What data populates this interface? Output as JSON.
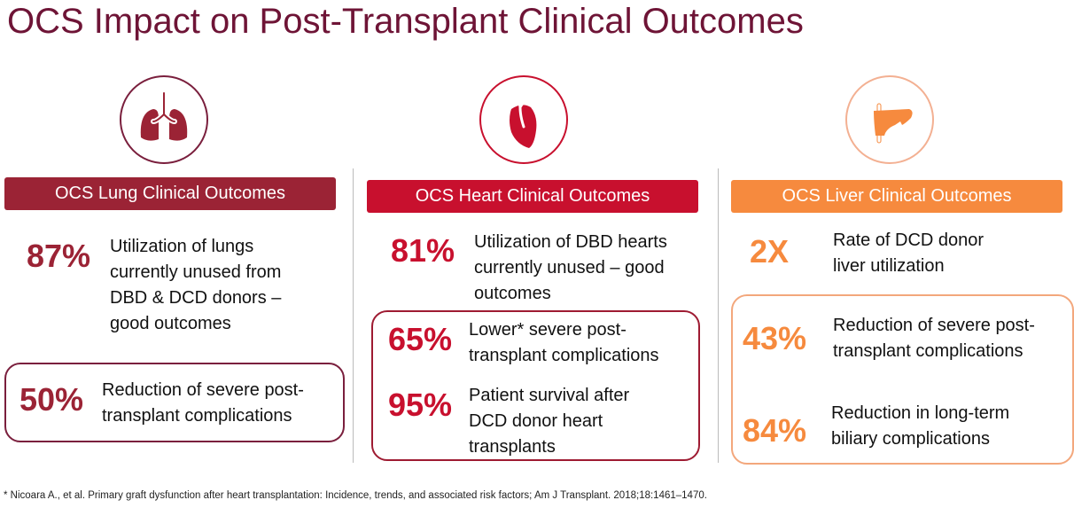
{
  "title": "OCS Impact on Post-Transplant Clinical Outcomes",
  "colors": {
    "lung": "#9b2335",
    "heart": "#c8102e",
    "liver": "#f68a3e",
    "title": "#6e1436"
  },
  "lung": {
    "icon": "lungs-icon",
    "header": "OCS Lung Clinical Outcomes",
    "stat1": {
      "value": "87%",
      "text": "Utilization of lungs currently unused from DBD & DCD donors – good outcomes"
    },
    "stat2": {
      "value": "50%",
      "text": "Reduction of severe post-transplant complications"
    }
  },
  "heart": {
    "icon": "heart-icon",
    "header": "OCS Heart Clinical Outcomes",
    "stat1": {
      "value": "81%",
      "text": "Utilization of DBD hearts currently unused – good outcomes"
    },
    "stat2": {
      "value": "65%",
      "text": "Lower* severe post-transplant complications"
    },
    "stat3": {
      "value": "95%",
      "text": "Patient survival after DCD donor heart transplants"
    }
  },
  "liver": {
    "icon": "liver-icon",
    "header": "OCS Liver Clinical Outcomes",
    "stat1": {
      "value": "2X",
      "text": "Rate of DCD donor liver utilization"
    },
    "stat2": {
      "value": "43%",
      "text": "Reduction of severe post-transplant complications"
    },
    "stat3": {
      "value": "84%",
      "text": "Reduction in long-term biliary complications"
    }
  },
  "footnote": "* Nicoara A., et al. Primary graft dysfunction after heart transplantation: Incidence, trends, and associated risk factors; Am J Transplant. 2018;18:1461–1470."
}
